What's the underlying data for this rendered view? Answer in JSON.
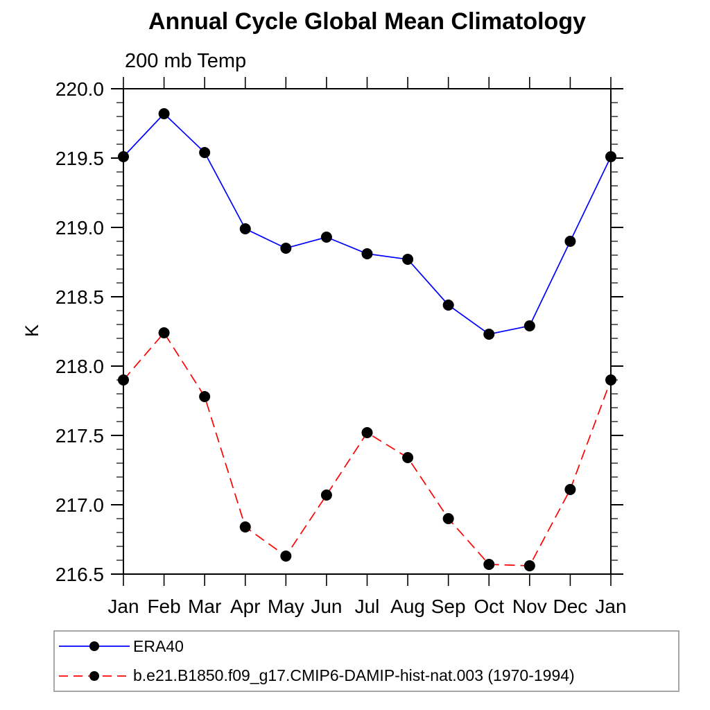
{
  "chart_data": {
    "type": "line",
    "title": "Annual Cycle Global Mean Climatology",
    "subtitle": "200 mb Temp",
    "ylabel": "K",
    "xlabel": "",
    "categories": [
      "Jan",
      "Feb",
      "Mar",
      "Apr",
      "May",
      "Jun",
      "Jul",
      "Aug",
      "Sep",
      "Oct",
      "Nov",
      "Dec",
      "Jan"
    ],
    "ylim": [
      216.5,
      220.0
    ],
    "ytick_step": 0.5,
    "yminor_step": 0.1,
    "ytick_labels": [
      "216.5",
      "217.0",
      "217.5",
      "218.0",
      "218.5",
      "219.0",
      "219.5",
      "220.0"
    ],
    "grid": false,
    "legend_position": "bottom",
    "axis_color": "#000000",
    "marker_color": "#000000",
    "series": [
      {
        "name": "ERA40",
        "color": "#0000ff",
        "line_style": "solid",
        "marker": "circle",
        "values": [
          219.51,
          219.82,
          219.54,
          218.99,
          218.85,
          218.93,
          218.81,
          218.77,
          218.44,
          218.23,
          218.29,
          218.9,
          219.51
        ]
      },
      {
        "name": "b.e21.B1850.f09_g17.CMIP6-DAMIP-hist-nat.003 (1970-1994)",
        "color": "#ff0000",
        "line_style": "dashed",
        "marker": "circle",
        "values": [
          217.9,
          218.24,
          217.78,
          216.84,
          216.63,
          217.07,
          217.52,
          217.34,
          216.9,
          216.57,
          216.56,
          217.11,
          217.9
        ]
      }
    ]
  }
}
